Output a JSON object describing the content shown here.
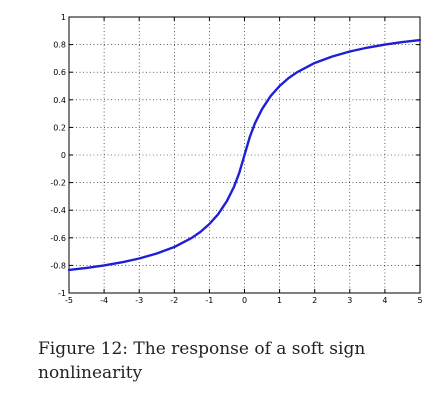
{
  "caption": {
    "label": "Figure 12:",
    "text": "The response of a soft sign nonlinearity"
  },
  "chart_data": {
    "type": "line",
    "title": "",
    "xlabel": "",
    "ylabel": "",
    "xlim": [
      -5,
      5
    ],
    "ylim": [
      -1,
      1
    ],
    "grid": true,
    "grid_style": "dotted",
    "x_ticks": [
      -5,
      -4,
      -3,
      -2,
      -1,
      0,
      1,
      2,
      3,
      4,
      5
    ],
    "x_tick_labels": [
      "-5",
      "-4",
      "-3",
      "-2",
      "-1",
      "0",
      "1",
      "2",
      "3",
      "4",
      "5"
    ],
    "y_ticks": [
      1,
      0.8,
      0.6,
      0.4,
      0.2,
      0,
      -0.2,
      -0.4,
      -0.6,
      -0.8,
      -1
    ],
    "y_tick_labels": [
      "1",
      "0.8",
      "0.6",
      "0.4",
      "0.2",
      "0",
      "-0.2",
      "-0.4",
      "-0.6",
      "-0.8",
      "-1"
    ],
    "line_color": "#1f1fd6",
    "series": [
      {
        "x": [
          -5,
          -4.5,
          -4,
          -3.5,
          -3,
          -2.5,
          -2,
          -1.5,
          -1.25,
          -1,
          -0.75,
          -0.5,
          -0.3,
          -0.15,
          0,
          0.15,
          0.3,
          0.5,
          0.75,
          1,
          1.25,
          1.5,
          2,
          2.5,
          3,
          3.5,
          4,
          4.5,
          5
        ],
        "y": [
          -0.833,
          -0.818,
          -0.8,
          -0.778,
          -0.75,
          -0.714,
          -0.667,
          -0.6,
          -0.556,
          -0.5,
          -0.429,
          -0.333,
          -0.231,
          -0.13,
          0,
          0.13,
          0.231,
          0.333,
          0.429,
          0.5,
          0.556,
          0.6,
          0.667,
          0.714,
          0.75,
          0.778,
          0.8,
          0.818,
          0.833
        ]
      }
    ]
  }
}
